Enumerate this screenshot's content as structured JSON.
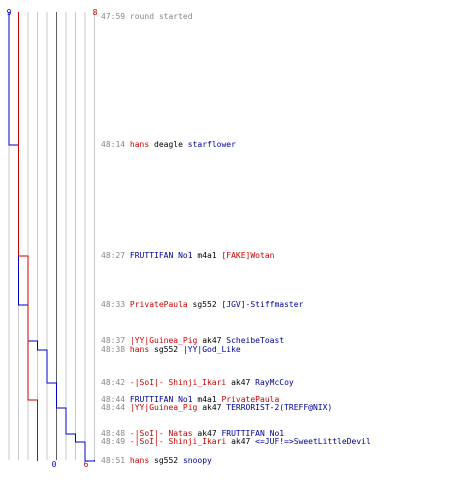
{
  "colors": {
    "team_red": "#cc0000",
    "team_blue": "#0000cc",
    "time": "#888888",
    "weapon": "#000000",
    "grid": "#c8c8c8",
    "axis": "#606060"
  },
  "scale": {
    "blue_start": "9",
    "red_start": "8",
    "blue_end": "0",
    "red_end": "6"
  },
  "events": [
    {
      "time": "47:59",
      "note": "round started"
    },
    {
      "time": "48:14",
      "killer": "hans",
      "killer_team": "red",
      "weapon": "deagle",
      "victim": "starflower",
      "victim_team": "blue"
    },
    {
      "time": "48:27",
      "killer": "FRUTTIFAN No1",
      "killer_team": "blue",
      "weapon": "m4a1",
      "victim": "[FAKE]Wotan",
      "victim_team": "red"
    },
    {
      "time": "48:33",
      "killer": "PrivatePaula",
      "killer_team": "red",
      "weapon": "sg552",
      "victim": "[JGV]-Stiffmaster",
      "victim_team": "blue"
    },
    {
      "time": "48:37",
      "killer": "|YY|Guinea_Pig",
      "killer_team": "red",
      "weapon": "ak47",
      "victim": "ScheibeToast",
      "victim_team": "blue"
    },
    {
      "time": "48:38",
      "killer": "hans",
      "killer_team": "red",
      "weapon": "sg552",
      "victim": "|YY|God_Like",
      "victim_team": "blue"
    },
    {
      "time": "48:42",
      "killer": "-|SoI|- Shinji_Ikari",
      "killer_team": "red",
      "weapon": "ak47",
      "victim": "RayMcCoy",
      "victim_team": "blue"
    },
    {
      "time": "48:44",
      "killer": "FRUTTIFAN No1",
      "killer_team": "blue",
      "weapon": "m4a1",
      "victim": "PrivatePaula",
      "victim_team": "red"
    },
    {
      "time": "48:44",
      "killer": "|YY|Guinea_Pig",
      "killer_team": "red",
      "weapon": "ak47",
      "victim": "TERRORIST-2(TREFF@NIX)",
      "victim_team": "blue"
    },
    {
      "time": "48:48",
      "killer": "-|SoI|- Natas",
      "killer_team": "red",
      "weapon": "ak47",
      "victim": "FRUTTIFAN No1",
      "victim_team": "blue"
    },
    {
      "time": "48:49",
      "killer": "-|SoI|- Shinji_Ikari",
      "killer_team": "red",
      "weapon": "ak47",
      "victim": "<=JUF!=>SweetLittleDevil",
      "victim_team": "blue"
    },
    {
      "time": "48:51",
      "killer": "hans",
      "killer_team": "red",
      "weapon": "sg552",
      "victim": "snoopy",
      "victim_team": "blue"
    }
  ],
  "chart_data": {
    "type": "line",
    "xlabel": "",
    "ylabel": "",
    "x": [
      "47:59",
      "48:14",
      "48:27",
      "48:33",
      "48:37",
      "48:38",
      "48:42",
      "48:44",
      "48:44",
      "48:48",
      "48:49",
      "48:51"
    ],
    "xlim": [
      0,
      9
    ],
    "grid": true,
    "series": [
      {
        "values": [
          9,
          8,
          8,
          7,
          6,
          5,
          4,
          4,
          3,
          2,
          1,
          0
        ]
      },
      {
        "values": [
          8,
          8,
          7,
          7,
          7,
          7,
          7,
          6,
          6,
          6,
          6,
          6
        ]
      }
    ]
  }
}
